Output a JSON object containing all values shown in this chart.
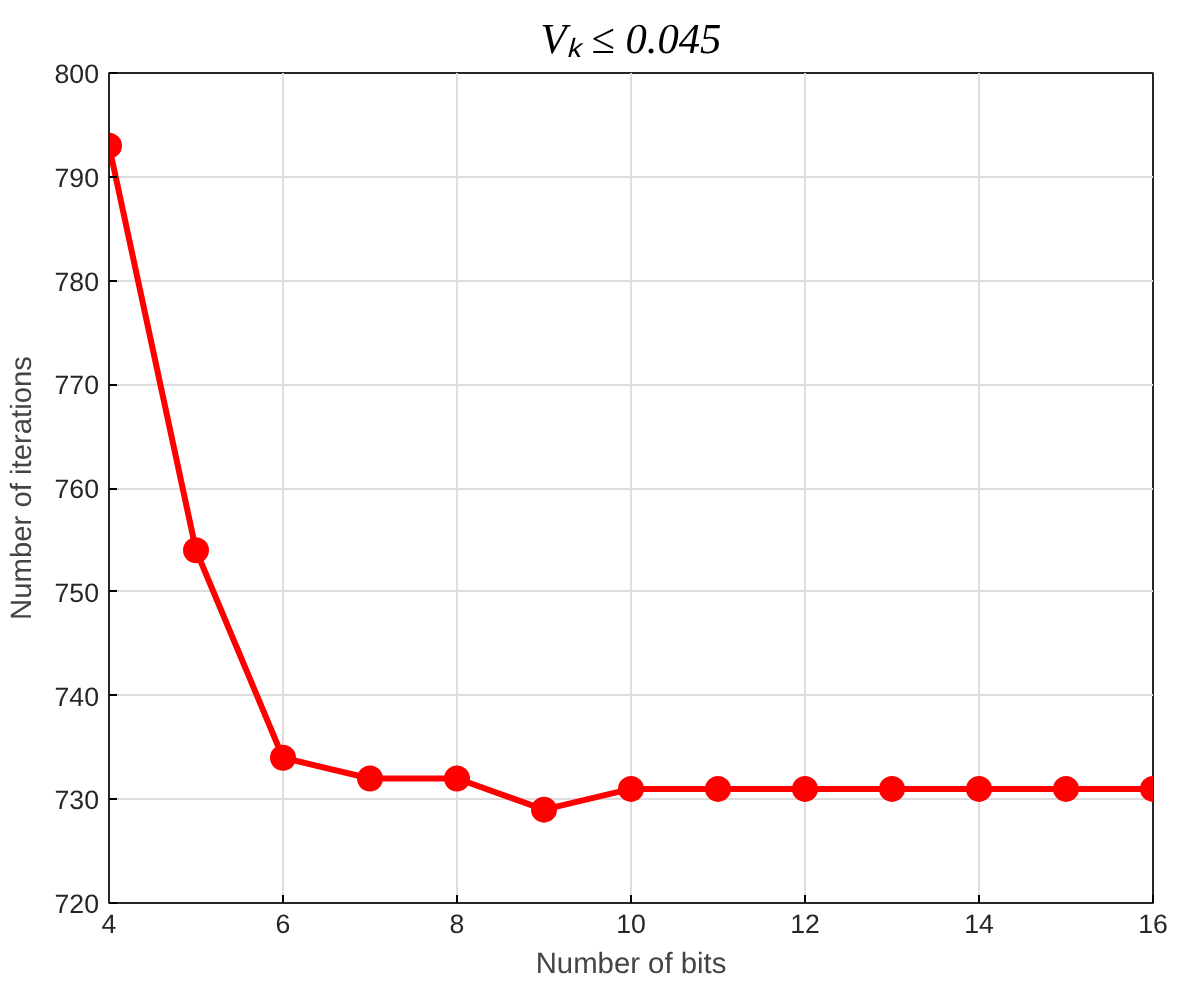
{
  "chart_data": {
    "type": "line",
    "title": "Vₖ ≤ 0.045",
    "xlabel": "Number of bits",
    "ylabel": "Number of iterations",
    "x": [
      4,
      5,
      6,
      7,
      8,
      9,
      10,
      11,
      12,
      13,
      14,
      15,
      16
    ],
    "series": [
      {
        "color": "#ff0000",
        "values": [
          793,
          754,
          734,
          732,
          732,
          729,
          731,
          731,
          731,
          731,
          731,
          731,
          731
        ]
      }
    ],
    "xlim": [
      4,
      16
    ],
    "xticks": [
      4,
      6,
      8,
      10,
      12,
      14,
      16
    ],
    "ylim": [
      720,
      800
    ],
    "yticks": [
      720,
      730,
      740,
      750,
      760,
      770,
      780,
      790,
      800
    ],
    "grid": true,
    "marker": "circle",
    "line_style": "solid"
  }
}
